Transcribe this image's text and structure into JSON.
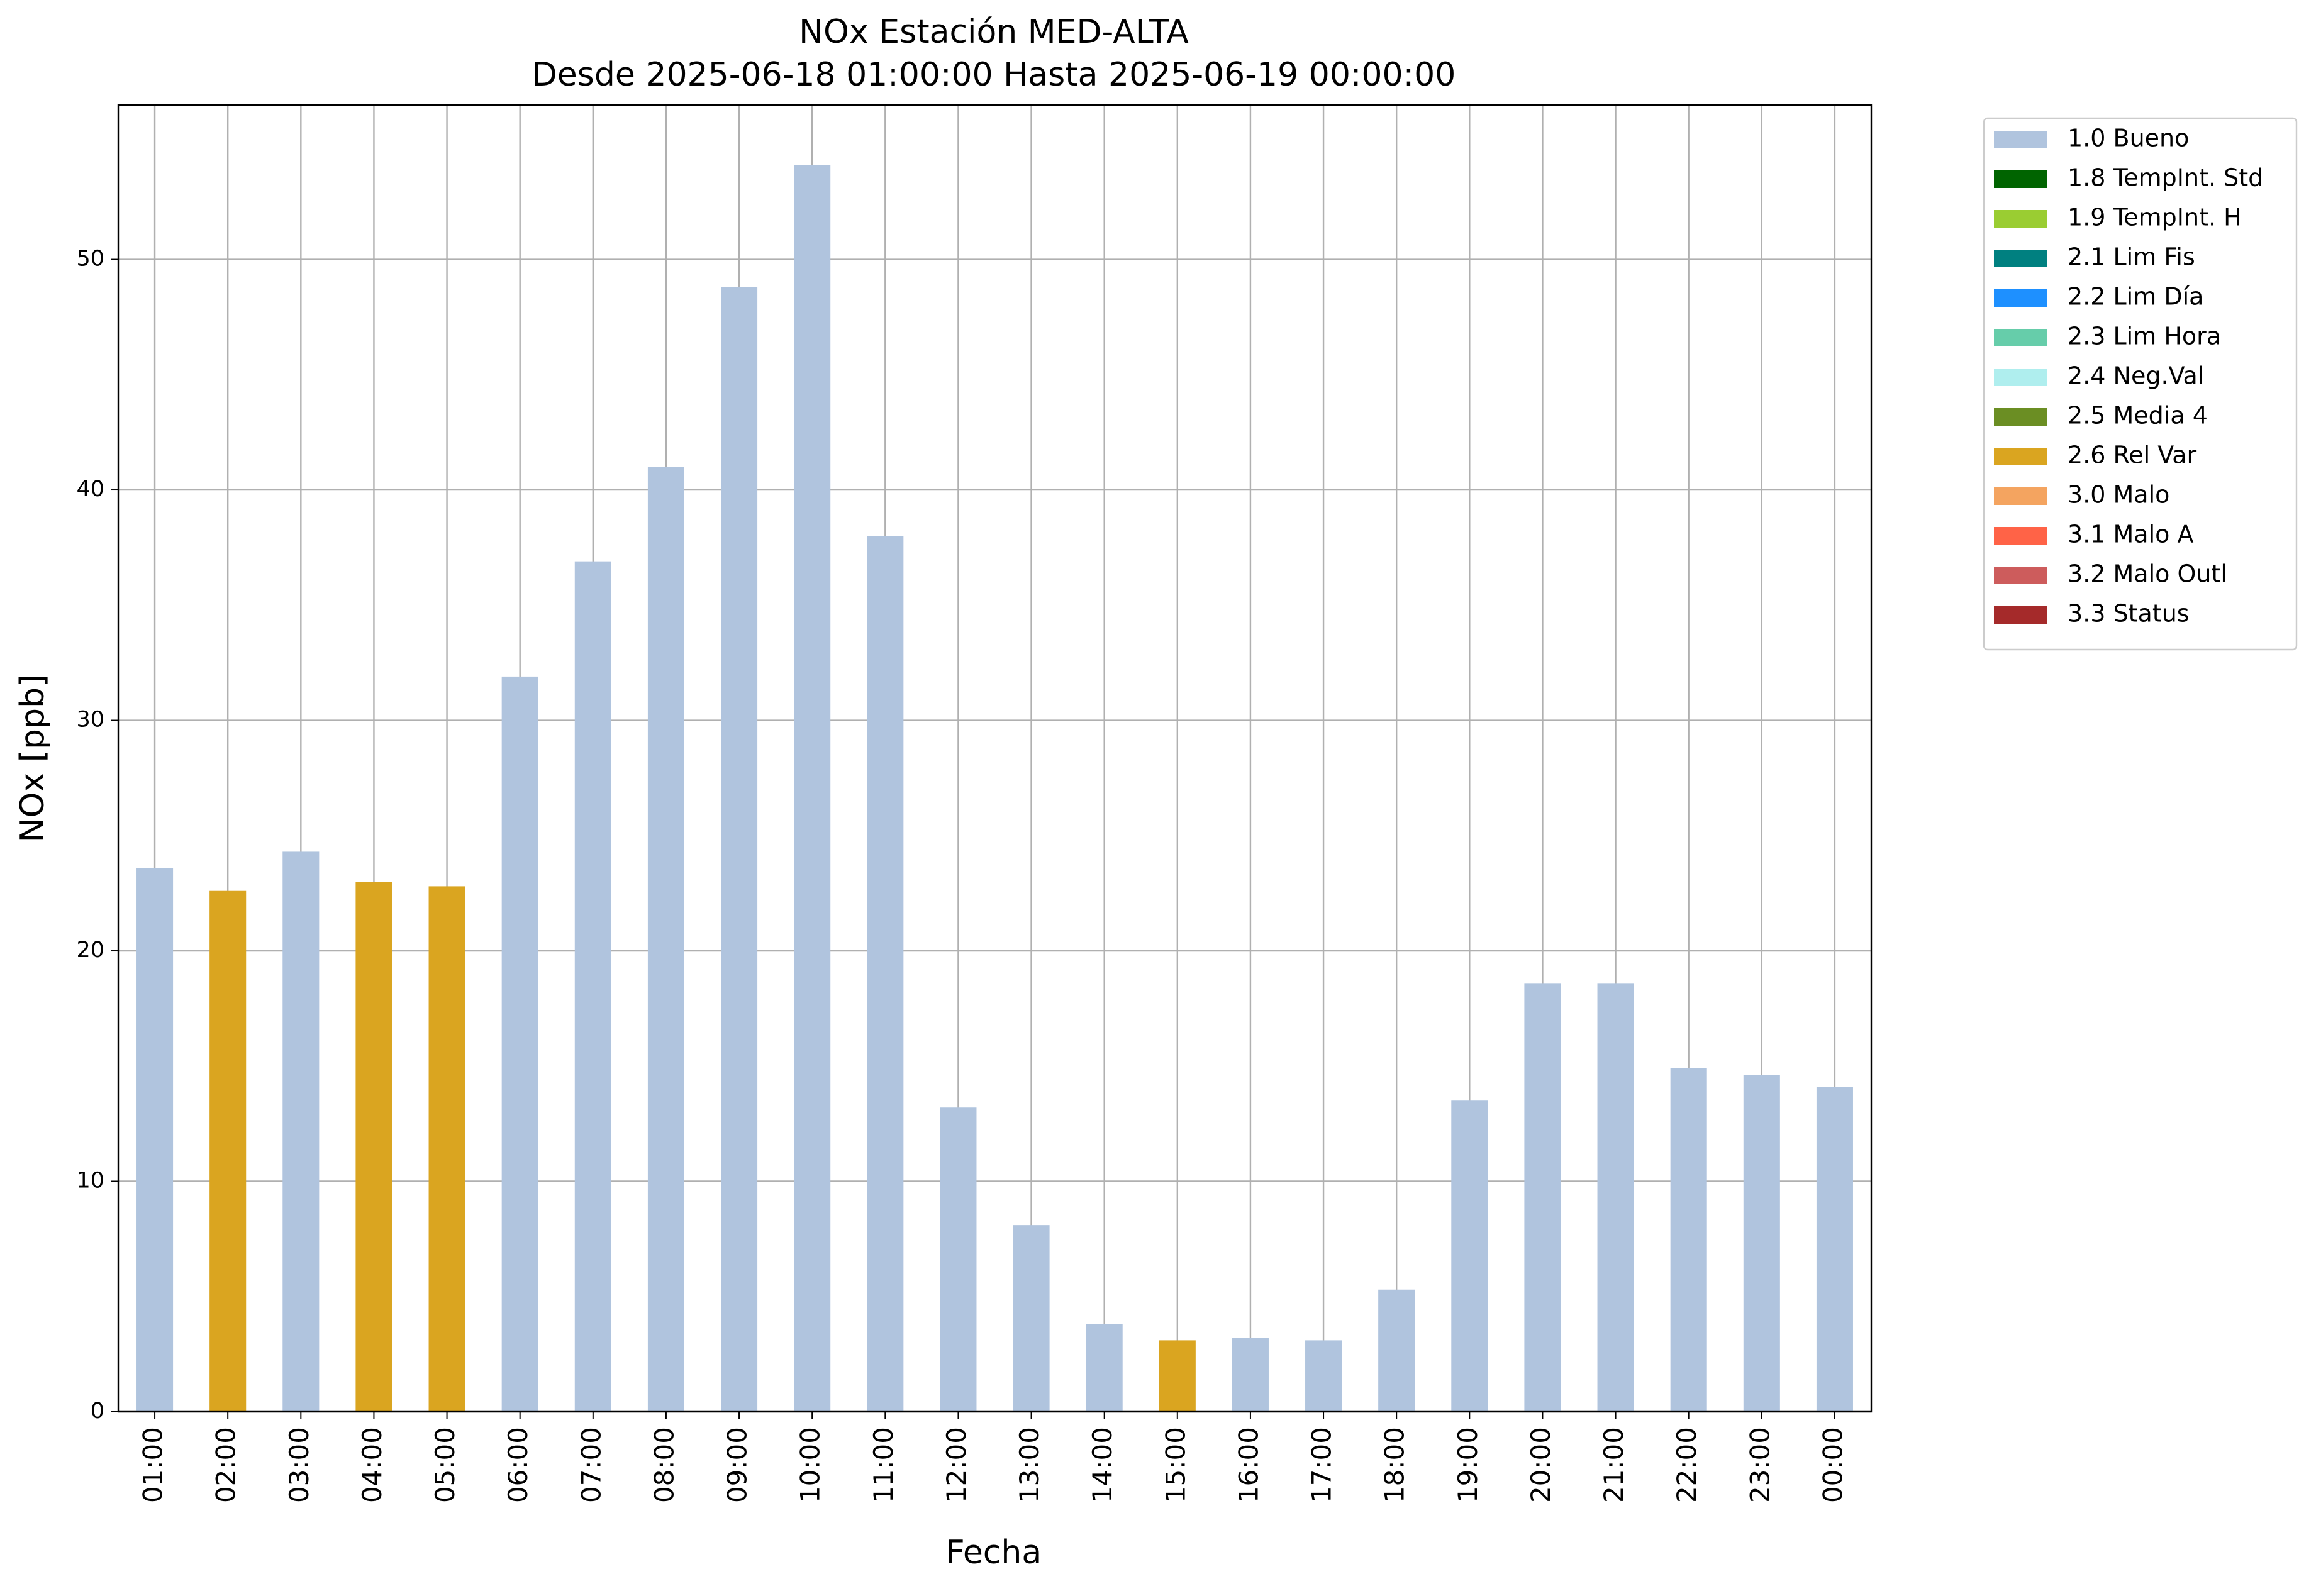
{
  "chart_data": {
    "type": "stacked_bar",
    "title": "NOx Estación MED-ALTA",
    "subtitle": "Desde 2025-06-18 01:00:00 Hasta 2025-06-19 00:00:00",
    "x_label": "Fecha",
    "y_label": "NOx [ppb]",
    "categories": [
      "01:00",
      "02:00",
      "03:00",
      "04:00",
      "05:00",
      "06:00",
      "07:00",
      "08:00",
      "09:00",
      "10:00",
      "11:00",
      "12:00",
      "13:00",
      "14:00",
      "15:00",
      "16:00",
      "17:00",
      "18:00",
      "19:00",
      "20:00",
      "21:00",
      "22:00",
      "23:00",
      "00:00"
    ],
    "series": [
      {
        "name": "1.0 Bueno",
        "color": "#b0c4de",
        "values": [
          23.6,
          null,
          24.3,
          null,
          null,
          31.9,
          36.9,
          41.0,
          48.8,
          54.1,
          38.0,
          13.2,
          8.1,
          3.8,
          null,
          3.2,
          3.1,
          5.3,
          13.5,
          18.6,
          18.6,
          14.9,
          14.6,
          14.1
        ]
      },
      {
        "name": "1.8 TempInt. Std",
        "color": "#006400",
        "values": [
          null,
          null,
          null,
          null,
          null,
          null,
          null,
          null,
          null,
          null,
          null,
          null,
          null,
          null,
          null,
          null,
          null,
          null,
          null,
          null,
          null,
          null,
          null,
          null
        ]
      },
      {
        "name": "1.9 TempInt. H",
        "color": "#9acd32",
        "values": [
          null,
          null,
          null,
          null,
          null,
          null,
          null,
          null,
          null,
          null,
          null,
          null,
          null,
          null,
          null,
          null,
          null,
          null,
          null,
          null,
          null,
          null,
          null,
          null
        ]
      },
      {
        "name": "2.1 Lim Fis",
        "color": "#008080",
        "values": [
          null,
          null,
          null,
          null,
          null,
          null,
          null,
          null,
          null,
          null,
          null,
          null,
          null,
          null,
          null,
          null,
          null,
          null,
          null,
          null,
          null,
          null,
          null,
          null
        ]
      },
      {
        "name": "2.2 Lim Día",
        "color": "#1e90ff",
        "values": [
          null,
          null,
          null,
          null,
          null,
          null,
          null,
          null,
          null,
          null,
          null,
          null,
          null,
          null,
          null,
          null,
          null,
          null,
          null,
          null,
          null,
          null,
          null,
          null
        ]
      },
      {
        "name": "2.3 Lim Hora",
        "color": "#66cdaa",
        "values": [
          null,
          null,
          null,
          null,
          null,
          null,
          null,
          null,
          null,
          null,
          null,
          null,
          null,
          null,
          null,
          null,
          null,
          null,
          null,
          null,
          null,
          null,
          null,
          null
        ]
      },
      {
        "name": "2.4 Neg.Val",
        "color": "#afeeee",
        "values": [
          null,
          null,
          null,
          null,
          null,
          null,
          null,
          null,
          null,
          null,
          null,
          null,
          null,
          null,
          null,
          null,
          null,
          null,
          null,
          null,
          null,
          null,
          null,
          null
        ]
      },
      {
        "name": "2.5 Media 4",
        "color": "#6b8e23",
        "values": [
          null,
          null,
          null,
          null,
          null,
          null,
          null,
          null,
          null,
          null,
          null,
          null,
          null,
          null,
          null,
          null,
          null,
          null,
          null,
          null,
          null,
          null,
          null,
          null
        ]
      },
      {
        "name": "2.6 Rel Var",
        "color": "#daa520",
        "values": [
          null,
          22.6,
          null,
          23.0,
          22.8,
          null,
          null,
          null,
          null,
          null,
          null,
          null,
          null,
          null,
          3.1,
          null,
          null,
          null,
          null,
          null,
          null,
          null,
          null,
          null
        ]
      },
      {
        "name": "3.0 Malo",
        "color": "#f4a460",
        "values": [
          null,
          null,
          null,
          null,
          null,
          null,
          null,
          null,
          null,
          null,
          null,
          null,
          null,
          null,
          null,
          null,
          null,
          null,
          null,
          null,
          null,
          null,
          null,
          null
        ]
      },
      {
        "name": "3.1 Malo A",
        "color": "#ff6347",
        "values": [
          null,
          null,
          null,
          null,
          null,
          null,
          null,
          null,
          null,
          null,
          null,
          null,
          null,
          null,
          null,
          null,
          null,
          null,
          null,
          null,
          null,
          null,
          null,
          null
        ]
      },
      {
        "name": "3.2 Malo Outl",
        "color": "#cd5c5c",
        "values": [
          null,
          null,
          null,
          null,
          null,
          null,
          null,
          null,
          null,
          null,
          null,
          null,
          null,
          null,
          null,
          null,
          null,
          null,
          null,
          null,
          null,
          null,
          null,
          null
        ]
      },
      {
        "name": "3.3 Status",
        "color": "#a52a2a",
        "values": [
          null,
          null,
          null,
          null,
          null,
          null,
          null,
          null,
          null,
          null,
          null,
          null,
          null,
          null,
          null,
          null,
          null,
          null,
          null,
          null,
          null,
          null,
          null,
          null
        ]
      }
    ],
    "ylim": [
      0,
      56.7
    ],
    "yticks": [
      0,
      10,
      20,
      30,
      40,
      50
    ],
    "grid": true,
    "legend": "outside-upper-right"
  }
}
